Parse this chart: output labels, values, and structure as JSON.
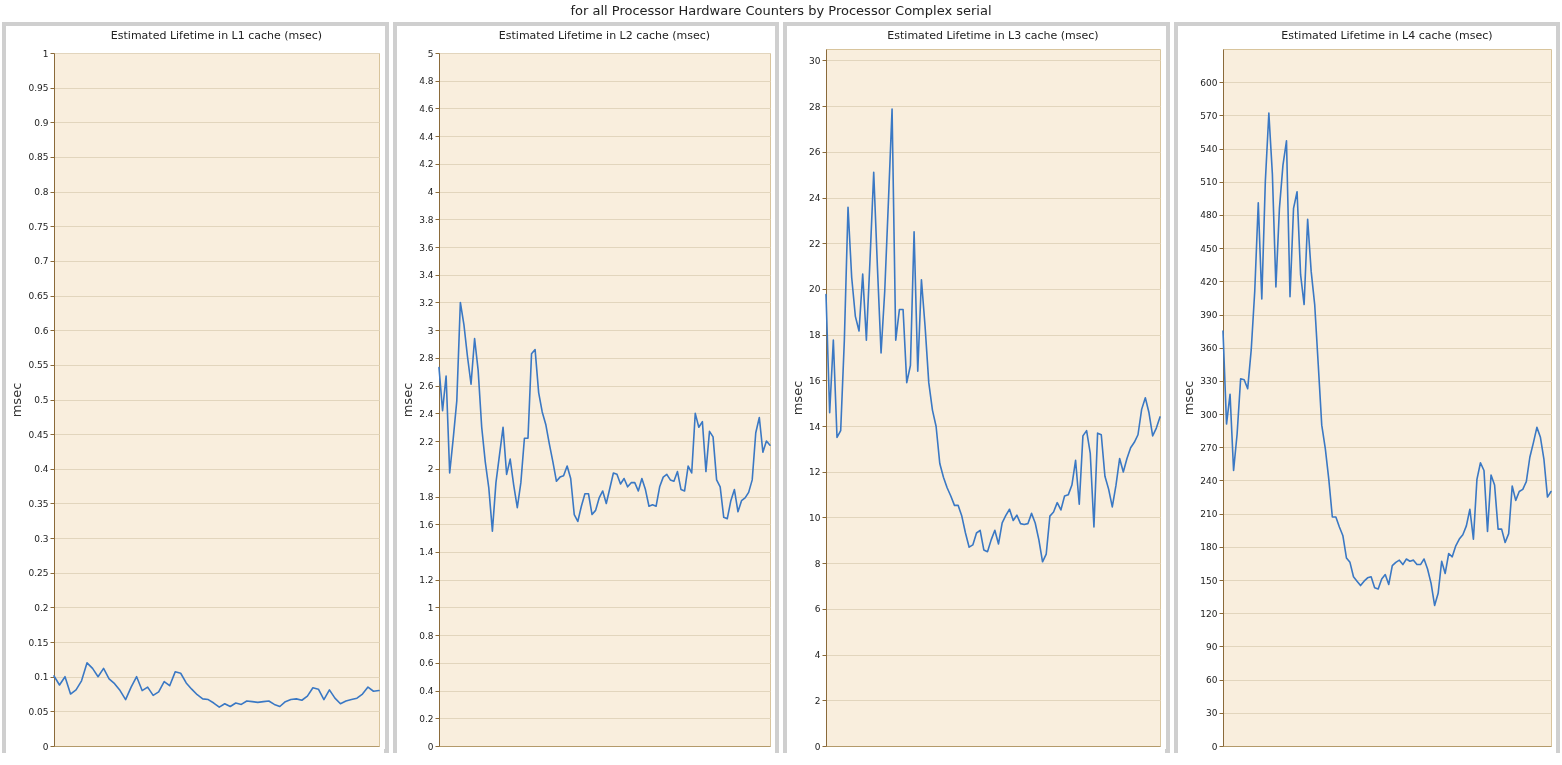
{
  "chart_data": [
    {
      "type": "line",
      "title": "Estimated Lifetime in L1 cache (msec)",
      "ylabel": "msec",
      "annotations": [
        "for all Processor Hardware Counters by Processor Complex serial"
      ],
      "color": "#3a78c4",
      "grid": "y",
      "tick_labels": "y",
      "ylim": [
        0,
        1
      ],
      "yticks": [
        0,
        0.05,
        0.1,
        0.15,
        0.2,
        0.25,
        0.3,
        0.35,
        0.4,
        0.45,
        0.5,
        0.55,
        0.6,
        0.65,
        0.7,
        0.75,
        0.8,
        0.85,
        0.9,
        0.95,
        1
      ],
      "categories": [
        null,
        null,
        null,
        null,
        null,
        null,
        null,
        null,
        null,
        null,
        null,
        null,
        null,
        null,
        null,
        null,
        null,
        null,
        null,
        null,
        null,
        null,
        null,
        null,
        null,
        null,
        null,
        null,
        null,
        null,
        null,
        null,
        null,
        null,
        null,
        null,
        null,
        null,
        null,
        null,
        null,
        null,
        null,
        null,
        null,
        null,
        null,
        null,
        null,
        null,
        null,
        null,
        null,
        null,
        null,
        null,
        null,
        null,
        null,
        null
      ],
      "values": [
        0.101,
        0.088,
        0.1,
        0.075,
        0.081,
        0.094,
        0.12,
        0.112,
        0.1,
        0.112,
        0.097,
        0.09,
        0.08,
        0.067,
        0.085,
        0.1,
        0.08,
        0.085,
        0.073,
        0.078,
        0.093,
        0.087,
        0.107,
        0.105,
        0.091,
        0.082,
        0.074,
        0.068,
        0.067,
        0.062,
        0.056,
        0.061,
        0.057,
        0.062,
        0.06,
        0.065,
        0.064,
        0.063,
        0.064,
        0.065,
        0.06,
        0.057,
        0.064,
        0.067,
        0.068,
        0.066,
        0.072,
        0.084,
        0.082,
        0.067,
        0.081,
        0.069,
        0.061,
        0.065,
        0.067,
        0.069,
        0.075,
        0.085,
        0.079,
        0.08
      ]
    },
    {
      "type": "line",
      "title": "Estimated Lifetime in L2 cache (msec)",
      "ylabel": "msec",
      "color": "#3a78c4",
      "grid": "y",
      "tick_labels": "y",
      "ylim": [
        0,
        5
      ],
      "yticks": [
        0,
        0.2,
        0.4,
        0.6,
        0.8,
        1,
        1.2,
        1.4,
        1.6,
        1.8,
        2,
        2.2,
        2.4,
        2.6,
        2.8,
        3,
        3.2,
        3.4,
        3.6,
        3.8,
        4,
        4.2,
        4.4,
        4.6,
        4.8,
        5
      ],
      "categories": [
        null,
        null,
        null,
        null,
        null,
        null,
        null,
        null,
        null,
        null,
        null,
        null,
        null,
        null,
        null,
        null,
        null,
        null,
        null,
        null,
        null,
        null,
        null,
        null,
        null,
        null,
        null,
        null,
        null,
        null,
        null,
        null,
        null,
        null,
        null,
        null,
        null,
        null,
        null,
        null,
        null,
        null,
        null,
        null,
        null,
        null,
        null,
        null,
        null,
        null,
        null,
        null,
        null,
        null,
        null,
        null,
        null,
        null,
        null,
        null,
        null,
        null,
        null,
        null,
        null,
        null,
        null,
        null,
        null,
        null,
        null,
        null,
        null,
        null,
        null,
        null,
        null,
        null,
        null,
        null,
        null,
        null,
        null,
        null,
        null,
        null,
        null,
        null,
        null,
        null,
        null,
        null,
        null,
        null
      ],
      "values": [
        2.73,
        2.42,
        2.67,
        1.97,
        2.22,
        2.49,
        3.2,
        3.04,
        2.81,
        2.61,
        2.94,
        2.71,
        2.3,
        2.05,
        1.86,
        1.55,
        1.9,
        2.1,
        2.3,
        1.96,
        2.07,
        1.88,
        1.72,
        1.9,
        2.22,
        2.22,
        2.83,
        2.86,
        2.55,
        2.41,
        2.32,
        2.18,
        2.05,
        1.91,
        1.94,
        1.95,
        2.02,
        1.93,
        1.67,
        1.62,
        1.73,
        1.82,
        1.82,
        1.67,
        1.7,
        1.79,
        1.84,
        1.75,
        1.86,
        1.97,
        1.96,
        1.89,
        1.93,
        1.87,
        1.9,
        1.9,
        1.84,
        1.93,
        1.85,
        1.73,
        1.74,
        1.73,
        1.87,
        1.94,
        1.96,
        1.92,
        1.91,
        1.98,
        1.85,
        1.84,
        2.02,
        1.97,
        2.4,
        2.3,
        2.34,
        1.98,
        2.27,
        2.23,
        1.92,
        1.87,
        1.65,
        1.64,
        1.77,
        1.85,
        1.69,
        1.77,
        1.79,
        1.83,
        1.92,
        2.26,
        2.37,
        2.12,
        2.2,
        2.17
      ]
    },
    {
      "type": "line",
      "title": "Estimated Lifetime in L3 cache (msec)",
      "ylabel": "msec",
      "color": "#3a78c4",
      "grid": "y",
      "tick_labels": "y",
      "ylim": [
        0,
        30.5
      ],
      "yticks": [
        0,
        2,
        4,
        6,
        8,
        10,
        12,
        14,
        16,
        18,
        20,
        22,
        24,
        26,
        28,
        30
      ],
      "categories": [
        null,
        null,
        null,
        null,
        null,
        null,
        null,
        null,
        null,
        null,
        null,
        null,
        null,
        null,
        null,
        null,
        null,
        null,
        null,
        null,
        null,
        null,
        null,
        null,
        null,
        null,
        null,
        null,
        null,
        null,
        null,
        null,
        null,
        null,
        null,
        null,
        null,
        null,
        null,
        null,
        null,
        null,
        null,
        null,
        null,
        null,
        null,
        null,
        null,
        null,
        null,
        null,
        null,
        null,
        null,
        null,
        null,
        null,
        null,
        null,
        null,
        null,
        null,
        null,
        null,
        null,
        null,
        null,
        null,
        null,
        null,
        null,
        null,
        null,
        null,
        null,
        null,
        null,
        null,
        null,
        null,
        null,
        null,
        null,
        null,
        null,
        null,
        null,
        null,
        null,
        null,
        null
      ],
      "values": [
        19.76,
        14.58,
        17.76,
        13.5,
        13.8,
        17.76,
        23.57,
        20.5,
        18.8,
        18.16,
        20.65,
        17.76,
        21.3,
        25.1,
        21.0,
        17.2,
        19.9,
        23.8,
        27.87,
        17.76,
        19.1,
        19.1,
        15.9,
        16.65,
        22.5,
        16.4,
        20.4,
        18.35,
        15.9,
        14.7,
        13.98,
        12.36,
        11.76,
        11.3,
        10.94,
        10.53,
        10.53,
        10.06,
        9.32,
        8.7,
        8.8,
        9.32,
        9.44,
        8.58,
        8.5,
        9.02,
        9.44,
        8.84,
        9.76,
        10.09,
        10.36,
        9.87,
        10.1,
        9.73,
        9.69,
        9.73,
        10.18,
        9.76,
        9.02,
        8.06,
        8.4,
        10.06,
        10.24,
        10.65,
        10.33,
        10.94,
        10.99,
        11.42,
        12.5,
        10.58,
        13.57,
        13.8,
        12.8,
        9.58,
        13.69,
        13.62,
        11.8,
        11.24,
        10.46,
        11.4,
        12.58,
        11.99,
        12.58,
        13.05,
        13.29,
        13.62,
        14.73,
        15.24,
        14.58,
        13.57,
        13.91,
        14.4
      ]
    },
    {
      "type": "line",
      "title": "Estimated Lifetime in L4 cache (msec)",
      "ylabel": "msec",
      "color": "#3a78c4",
      "grid": "y",
      "tick_labels": "y",
      "ylim": [
        0,
        630
      ],
      "yticks": [
        0,
        30,
        60,
        90,
        120,
        150,
        180,
        210,
        240,
        270,
        300,
        330,
        360,
        390,
        420,
        450,
        480,
        510,
        540,
        570,
        600
      ],
      "categories": [
        null,
        null,
        null,
        null,
        null,
        null,
        null,
        null,
        null,
        null,
        null,
        null,
        null,
        null,
        null,
        null,
        null,
        null,
        null,
        null,
        null,
        null,
        null,
        null,
        null,
        null,
        null,
        null,
        null,
        null,
        null,
        null,
        null,
        null,
        null,
        null,
        null,
        null,
        null,
        null,
        null,
        null,
        null,
        null,
        null,
        null,
        null,
        null,
        null,
        null,
        null,
        null,
        null,
        null,
        null,
        null,
        null,
        null,
        null,
        null,
        null,
        null,
        null,
        null,
        null,
        null,
        null,
        null,
        null,
        null,
        null,
        null,
        null,
        null,
        null,
        null,
        null,
        null,
        null,
        null,
        null,
        null,
        null,
        null,
        null,
        null,
        null,
        null,
        null,
        null,
        null,
        null,
        null,
        null
      ],
      "values": [
        375,
        291,
        318,
        249,
        282,
        332,
        331,
        323,
        358,
        411,
        491,
        404,
        510,
        572,
        517,
        415,
        486,
        525,
        547,
        406,
        486,
        501,
        426,
        399,
        476,
        429,
        399,
        345,
        290,
        269,
        241,
        207,
        207,
        198,
        190,
        170,
        166,
        153,
        149,
        145,
        149,
        152,
        153,
        143,
        142,
        151,
        155,
        146,
        163,
        166,
        168,
        164,
        169,
        167,
        168,
        164,
        164,
        169,
        160,
        147,
        127,
        138,
        167,
        156,
        174,
        171,
        181,
        187,
        191,
        199,
        214,
        187,
        241,
        256,
        249,
        194,
        245,
        236,
        196,
        196,
        184,
        192,
        235,
        222,
        230,
        232,
        239,
        261,
        274,
        288,
        279,
        259,
        225,
        230
      ]
    }
  ]
}
